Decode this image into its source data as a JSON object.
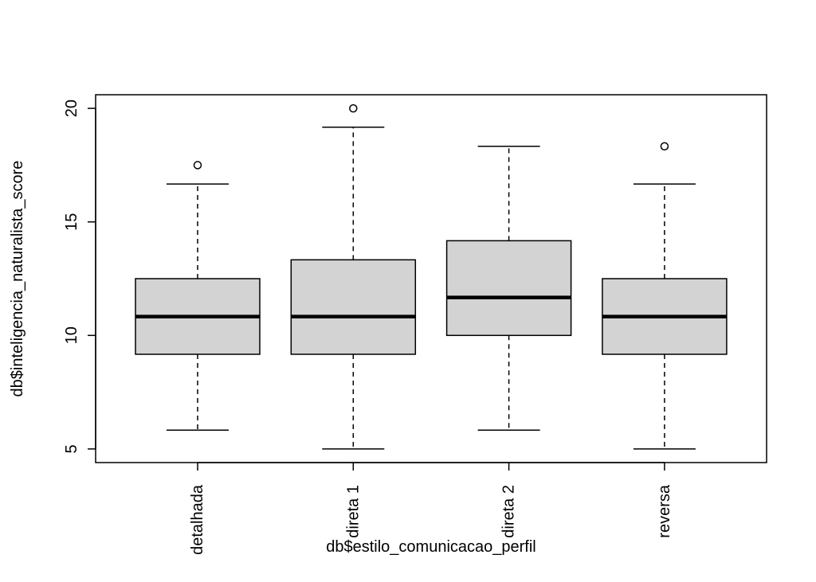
{
  "chart_data": {
    "type": "boxplot",
    "title": "",
    "xlabel": "db$estilo_comunicacao_perfil",
    "ylabel": "db$inteligencia_naturalista_score",
    "categories": [
      "detalhada",
      "direta 1",
      "direta 2",
      "reversa"
    ],
    "boxes": [
      {
        "category": "detalhada",
        "whisker_low": 5.83,
        "q1": 9.17,
        "median": 10.83,
        "q3": 12.5,
        "whisker_high": 16.67,
        "outliers": [
          17.5
        ]
      },
      {
        "category": "direta 1",
        "whisker_low": 5.0,
        "q1": 9.17,
        "median": 10.83,
        "q3": 13.33,
        "whisker_high": 19.17,
        "outliers": [
          20.0
        ]
      },
      {
        "category": "direta 2",
        "whisker_low": 5.83,
        "q1": 10.0,
        "median": 11.67,
        "q3": 14.17,
        "whisker_high": 18.33,
        "outliers": []
      },
      {
        "category": "reversa",
        "whisker_low": 5.0,
        "q1": 9.17,
        "median": 10.83,
        "q3": 12.5,
        "whisker_high": 16.67,
        "outliers": [
          18.33
        ]
      }
    ],
    "y_ticks": [
      5,
      10,
      15,
      20
    ],
    "ylim": [
      4.4,
      20.6
    ],
    "box_fill": "#d3d3d3",
    "grid": false
  }
}
